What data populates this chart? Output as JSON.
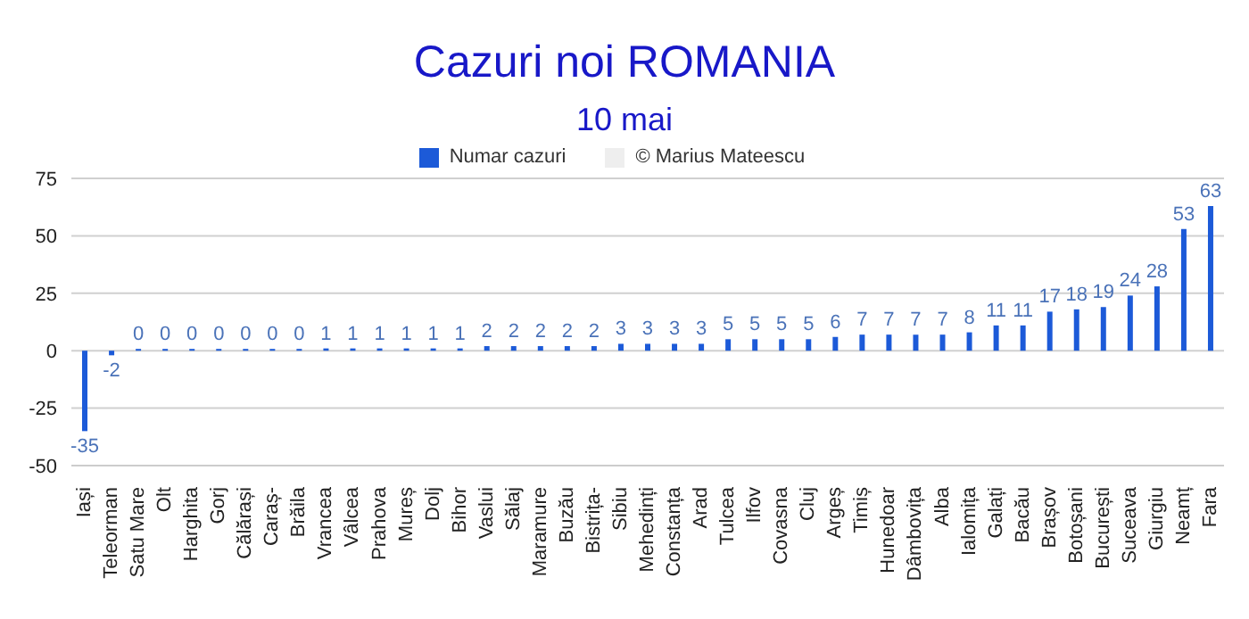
{
  "chart_data": {
    "type": "bar",
    "title": "Cazuri noi ROMANIA",
    "subtitle": "10 mai",
    "categories": [
      "Iași",
      "Teleorman",
      "Satu Mare",
      "Olt",
      "Harghita",
      "Gorj",
      "Călărași",
      "Caraș-",
      "Brăila",
      "Vrancea",
      "Vâlcea",
      "Prahova",
      "Mureș",
      "Dolj",
      "Bihor",
      "Vaslui",
      "Sălaj",
      "Maramure",
      "Buzău",
      "Bistrița-",
      "Sibiu",
      "Mehedinți",
      "Constanța",
      "Arad",
      "Tulcea",
      "Ilfov",
      "Covasna",
      "Cluj",
      "Argeș",
      "Timiș",
      "Hunedoar",
      "Dâmbovița",
      "Alba",
      "Ialomița",
      "Galați",
      "Bacău",
      "Brașov",
      "Botoșani",
      "București",
      "Suceava",
      "Giurgiu",
      "Neamț",
      "Fara"
    ],
    "series": [
      {
        "name": "Numar cazuri",
        "color": "#1c5ad8",
        "values": [
          -35,
          -2,
          0,
          0,
          0,
          0,
          0,
          0,
          0,
          1,
          1,
          1,
          1,
          1,
          1,
          2,
          2,
          2,
          2,
          2,
          3,
          3,
          3,
          3,
          5,
          5,
          5,
          5,
          6,
          7,
          7,
          7,
          7,
          8,
          11,
          11,
          17,
          18,
          19,
          24,
          28,
          53,
          63
        ]
      },
      {
        "name": "© Marius Mateescu",
        "color": "#eeeeee",
        "values": [
          null,
          null,
          null,
          null,
          null,
          null,
          null,
          null,
          null,
          null,
          null,
          null,
          null,
          null,
          null,
          null,
          null,
          null,
          null,
          null,
          null,
          null,
          null,
          null,
          null,
          null,
          null,
          null,
          null,
          null,
          null,
          null,
          null,
          null,
          null,
          null,
          null,
          null,
          null,
          null,
          null,
          null,
          null
        ]
      }
    ],
    "ylim": [
      -50,
      75
    ],
    "yticks": [
      -50,
      -25,
      0,
      25,
      50,
      75
    ],
    "grid": "y",
    "legend": "top",
    "data_labels": true
  }
}
